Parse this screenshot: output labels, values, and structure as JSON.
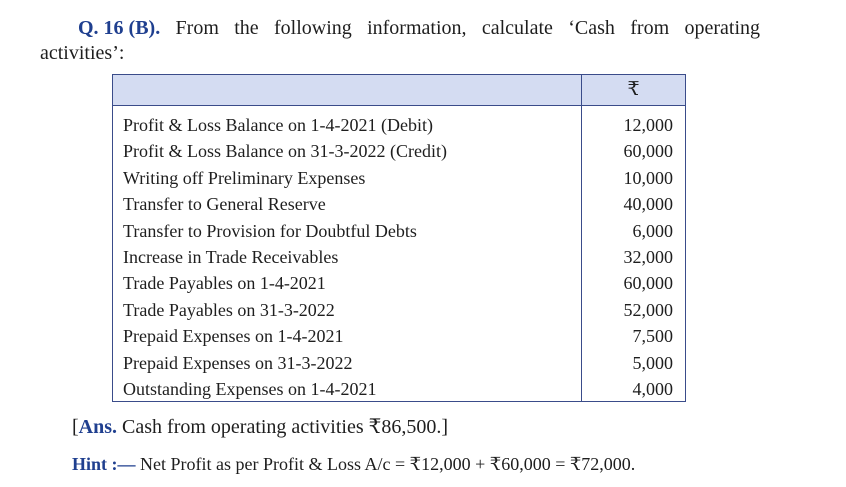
{
  "question": {
    "number": "Q. 16 (B).",
    "text_line1_words": [
      "From",
      "the",
      "following",
      "information,",
      "calculate",
      "‘Cash",
      "from",
      "operating"
    ],
    "text_line2": "activities’:"
  },
  "table": {
    "currency_header": "₹",
    "rows": [
      {
        "label": "Profit & Loss Balance on 1-4-2021 (Debit)",
        "amount": "12,000"
      },
      {
        "label": "Profit & Loss Balance on 31-3-2022 (Credit)",
        "amount": "60,000"
      },
      {
        "label": "Writing off Preliminary Expenses",
        "amount": "10,000"
      },
      {
        "label": "Transfer to General Reserve",
        "amount": "40,000"
      },
      {
        "label": "Transfer to Provision for Doubtful Debts",
        "amount": "6,000"
      },
      {
        "label": "Increase in Trade Receivables",
        "amount": "32,000"
      },
      {
        "label": "Trade Payables on 1-4-2021",
        "amount": "60,000"
      },
      {
        "label": "Trade Payables on 31-3-2022",
        "amount": "52,000"
      },
      {
        "label": "Prepaid Expenses on 1-4-2021",
        "amount": "7,500"
      },
      {
        "label": "Prepaid Expenses on 31-3-2022",
        "amount": "5,000"
      },
      {
        "label": "Outstanding Expenses on 1-4-2021",
        "amount": "4,000"
      }
    ]
  },
  "answer": {
    "open_bracket": "[",
    "label": "Ans.",
    "text": " Cash from operating activities ₹86,500.]"
  },
  "hint": {
    "label": "Hint :—",
    "text": " Net Profit as per Profit & Loss A/c = ₹12,000 + ₹60,000 = ₹72,000."
  },
  "colors": {
    "accent": "#1f3f8f",
    "table_header_bg": "#d4dcf2",
    "table_border": "#3a4c8a"
  }
}
